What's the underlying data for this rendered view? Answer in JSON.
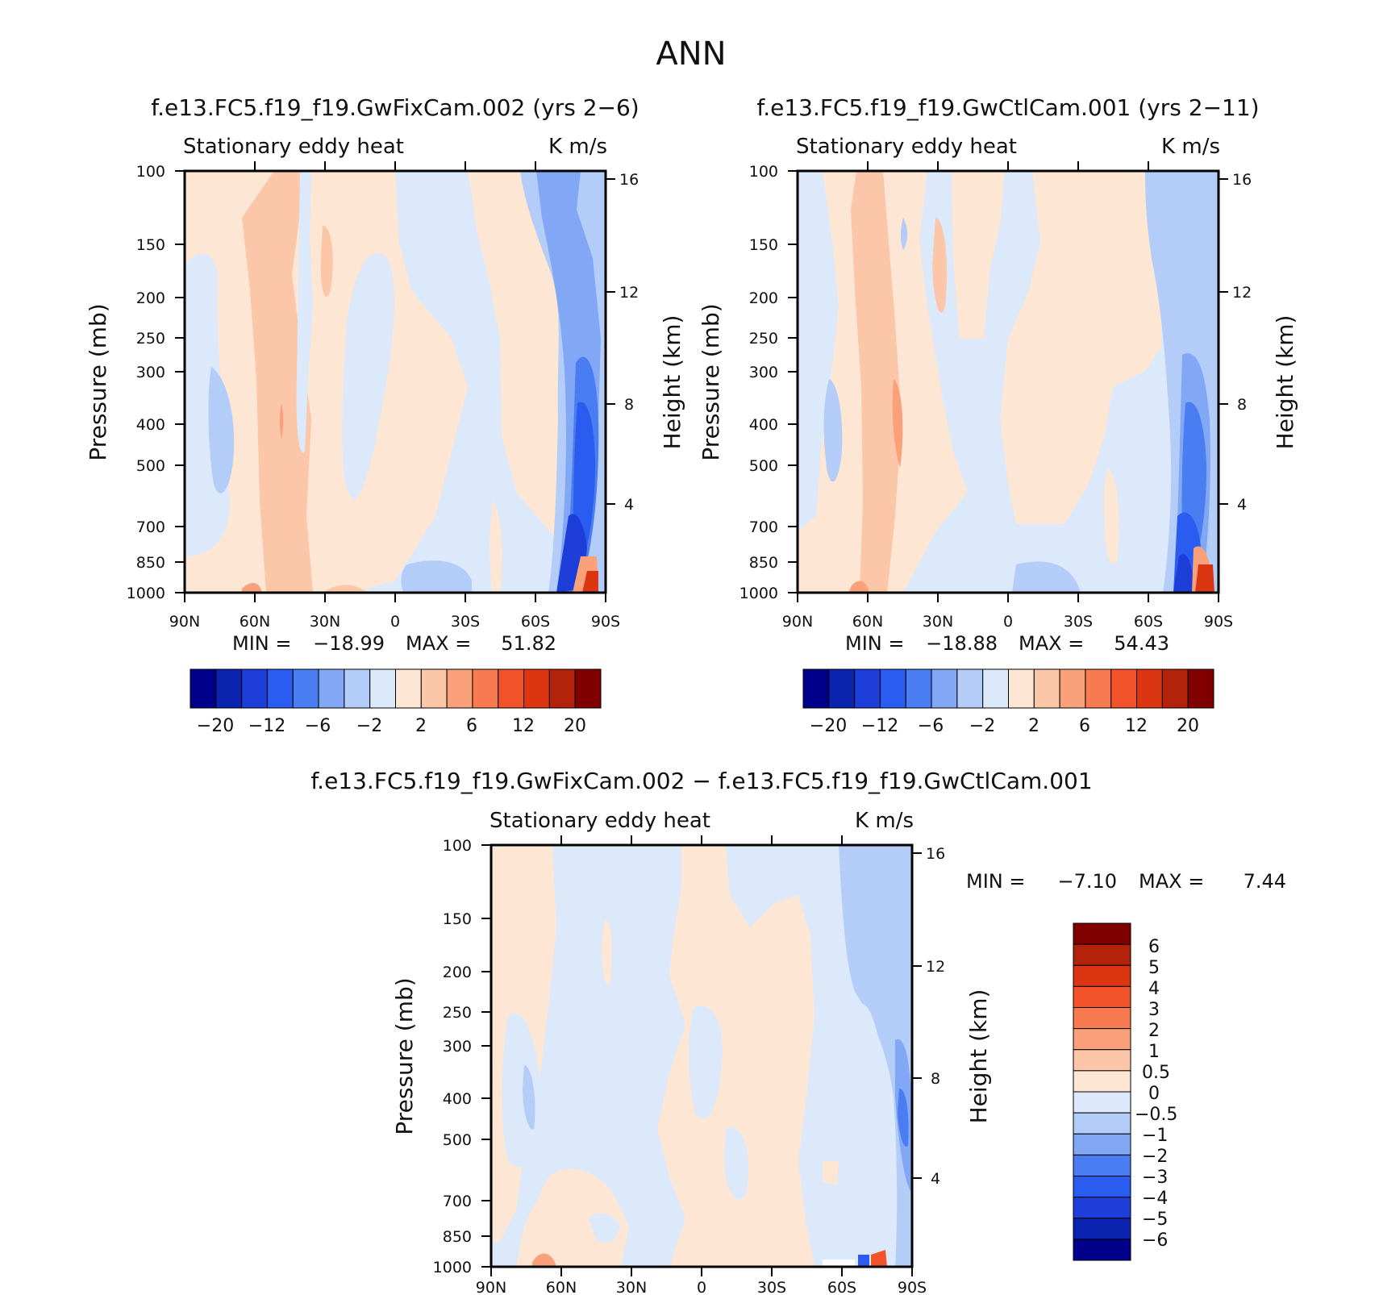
{
  "main_title": "ANN",
  "panels": [
    {
      "id": "a",
      "title": "f.e13.FC5.f19_f19.GwFixCam.002 (yrs 2-6)",
      "subtitle_left": "Stationary eddy heat",
      "subtitle_right": "K m/s",
      "ylabel_left": "Pressure (mb)",
      "ylabel_right": "Height (km)",
      "min_label": "MIN =",
      "min_value": "-18.99",
      "max_label": "MAX =",
      "max_value": "51.82"
    },
    {
      "id": "b",
      "title": "f.e13.FC5.f19_f19.GwCtlCam.001 (yrs 2-11)",
      "subtitle_left": "Stationary eddy heat",
      "subtitle_right": "K m/s",
      "ylabel_left": "Pressure (mb)",
      "ylabel_right": "Height (km)",
      "min_label": "MIN =",
      "min_value": "-18.88",
      "max_label": "MAX =",
      "max_value": "54.43"
    },
    {
      "id": "c",
      "title": "f.e13.FC5.f19_f19.GwFixCam.002 - f.e13.FC5.f19_f19.GwCtlCam.001",
      "subtitle_left": "Stationary eddy heat",
      "subtitle_right": "K m/s",
      "ylabel_left": "Pressure (mb)",
      "ylabel_right": "Height (km)",
      "min_label": "MIN =",
      "min_value": "-7.10",
      "max_label": "MAX =",
      "max_value": "7.44"
    }
  ],
  "chart_data": [
    {
      "type": "heatmap",
      "panel": "a",
      "x_ticks": [
        "90N",
        "60N",
        "30N",
        "0",
        "30S",
        "60S",
        "90S"
      ],
      "y_ticks_pressure": [
        "100",
        "150",
        "200",
        "250",
        "300",
        "400",
        "500",
        "700",
        "850",
        "1000"
      ],
      "y_ticks_height": [
        "16",
        "12",
        "8",
        "4"
      ],
      "colorbar": {
        "orientation": "horizontal",
        "tick_labels": [
          "-20",
          "-12",
          "-6",
          "-2",
          "2",
          "6",
          "12",
          "20"
        ],
        "colors": [
          "#00008b",
          "#0a24b0",
          "#1d3ed8",
          "#2a5cf0",
          "#4a7cf2",
          "#82a7f5",
          "#b4cdf8",
          "#dce9fb",
          "#fde6d4",
          "#fcc6a8",
          "#faa07a",
          "#f77a50",
          "#f2532a",
          "#db3512",
          "#b3230c",
          "#800000"
        ]
      }
    },
    {
      "type": "heatmap",
      "panel": "b",
      "x_ticks": [
        "90N",
        "60N",
        "30N",
        "0",
        "30S",
        "60S",
        "90S"
      ],
      "y_ticks_pressure": [
        "100",
        "150",
        "200",
        "250",
        "300",
        "400",
        "500",
        "700",
        "850",
        "1000"
      ],
      "y_ticks_height": [
        "16",
        "12",
        "8",
        "4"
      ],
      "colorbar": {
        "orientation": "horizontal",
        "tick_labels": [
          "-20",
          "-12",
          "-6",
          "-2",
          "2",
          "6",
          "12",
          "20"
        ],
        "colors": [
          "#00008b",
          "#0a24b0",
          "#1d3ed8",
          "#2a5cf0",
          "#4a7cf2",
          "#82a7f5",
          "#b4cdf8",
          "#dce9fb",
          "#fde6d4",
          "#fcc6a8",
          "#faa07a",
          "#f77a50",
          "#f2532a",
          "#db3512",
          "#b3230c",
          "#800000"
        ]
      }
    },
    {
      "type": "heatmap",
      "panel": "c",
      "x_ticks": [
        "90N",
        "60N",
        "30N",
        "0",
        "30S",
        "60S",
        "90S"
      ],
      "y_ticks_pressure": [
        "100",
        "150",
        "200",
        "250",
        "300",
        "400",
        "500",
        "700",
        "850",
        "1000"
      ],
      "y_ticks_height": [
        "16",
        "12",
        "8",
        "4"
      ],
      "colorbar": {
        "orientation": "vertical",
        "tick_labels": [
          "6",
          "5",
          "4",
          "3",
          "2",
          "1",
          "0.5",
          "0",
          "-0.5",
          "-1",
          "-2",
          "-3",
          "-4",
          "-5",
          "-6"
        ],
        "colors": [
          "#800000",
          "#b3230c",
          "#db3512",
          "#f2532a",
          "#f77a50",
          "#faa07a",
          "#fcc6a8",
          "#fde6d4",
          "#dce9fb",
          "#b4cdf8",
          "#82a7f5",
          "#4a7cf2",
          "#2a5cf0",
          "#1d3ed8",
          "#0a24b0",
          "#00008b"
        ]
      }
    }
  ]
}
